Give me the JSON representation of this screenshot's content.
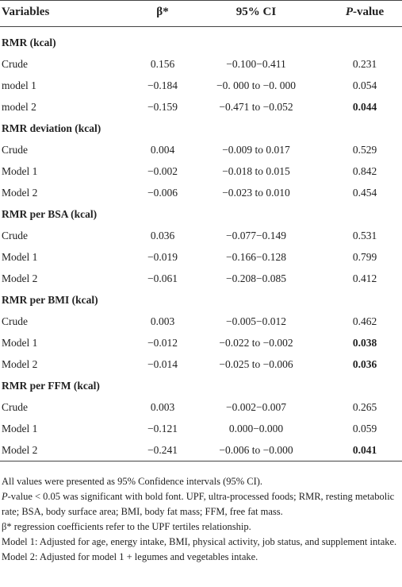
{
  "table": {
    "columns": [
      "Variables",
      "β*",
      "95% CI",
      {
        "italic": "P",
        "text": "-value"
      }
    ],
    "sections": [
      {
        "title": "RMR (kcal)",
        "rows": [
          {
            "label": "Crude",
            "beta": "0.156",
            "ci": "−0.100−0.411",
            "p": "0.231"
          },
          {
            "label": "model 1",
            "beta": "−0.184",
            "ci": "−0. 000 to −0. 000",
            "p": "0.054"
          },
          {
            "label": "model 2",
            "beta": "−0.159",
            "ci": "−0.471 to −0.052",
            "p": "0.044",
            "p_bold": true
          }
        ]
      },
      {
        "title": "RMR deviation (kcal)",
        "rows": [
          {
            "label": "Crude",
            "beta": "0.004",
            "ci": "−0.009 to 0.017",
            "p": "0.529"
          },
          {
            "label": "Model 1",
            "beta": "−0.002",
            "ci": "−0.018 to 0.015",
            "p": "0.842"
          },
          {
            "label": "Model 2",
            "beta": "−0.006",
            "ci": "−0.023 to 0.010",
            "p": "0.454"
          }
        ]
      },
      {
        "title": "RMR per BSA (kcal)",
        "rows": [
          {
            "label": "Crude",
            "beta": "0.036",
            "ci": "−0.077−0.149",
            "p": "0.531"
          },
          {
            "label": "Model 1",
            "beta": "−0.019",
            "ci": "−0.166−0.128",
            "p": "0.799"
          },
          {
            "label": "Model 2",
            "beta": "−0.061",
            "ci": "−0.208−0.085",
            "p": "0.412"
          }
        ]
      },
      {
        "title": "RMR per BMI (kcal)",
        "rows": [
          {
            "label": "Crude",
            "beta": "0.003",
            "ci": "−0.005−0.012",
            "p": "0.462"
          },
          {
            "label": "Model 1",
            "beta": "−0.012",
            "ci": "−0.022 to −0.002",
            "p": "0.038",
            "p_bold": true
          },
          {
            "label": "Model 2",
            "beta": "−0.014",
            "ci": "−0.025 to −0.006",
            "p": "0.036",
            "p_bold": true
          }
        ]
      },
      {
        "title": "RMR per FFM (kcal)",
        "rows": [
          {
            "label": "Crude",
            "beta": "0.003",
            "ci": "−0.002−0.007",
            "p": "0.265"
          },
          {
            "label": "Model 1",
            "beta": "−0.121",
            "ci": "0.000−0.000",
            "p": "0.059"
          },
          {
            "label": "Model 2",
            "beta": "−0.241",
            "ci": "−0.006 to −0.000",
            "p": "0.041",
            "p_bold": true
          }
        ]
      }
    ],
    "footnotes": [
      {
        "text": "All values were presented as 95% Confidence intervals (95% CI)."
      },
      {
        "italic": "P",
        "text": "-value < 0.05 was significant with bold font. UPF, ultra-processed foods; RMR, resting metabolic rate; BSA, body surface area; BMI, body fat mass; FFM, free fat mass."
      },
      {
        "text": "β* regression coefficients refer to the UPF tertiles relationship."
      },
      {
        "text": "Model 1: Adjusted for age, energy intake, BMI, physical activity, job status, and supplement intake."
      },
      {
        "text": "Model 2: Adjusted for model 1 + legumes and vegetables intake."
      }
    ]
  }
}
